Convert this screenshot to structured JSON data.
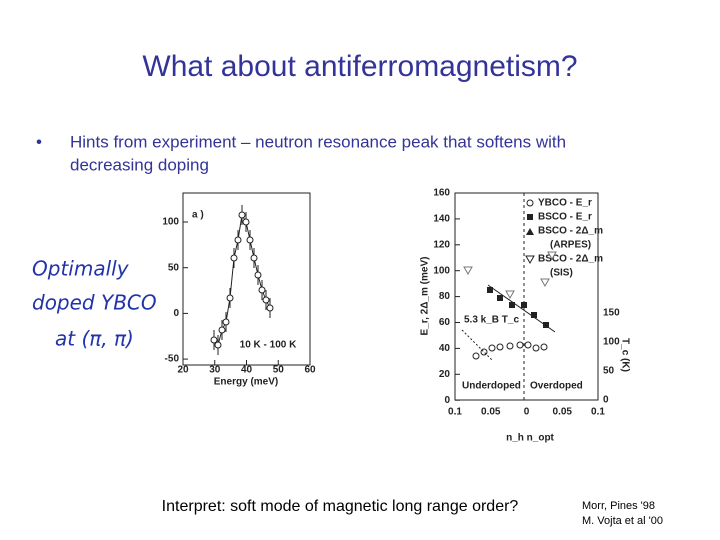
{
  "title": "What about antiferromagnetism?",
  "bullets": [
    "Hints from experiment – neutron resonance peak that softens with",
    "decreasing doping"
  ],
  "handwritten_note": [
    "Optimally",
    "doped YBCO",
    "at (π, π)"
  ],
  "figure_left": {
    "panel_label": "a )",
    "annotation": "10 K - 100 K",
    "xlabel": "Energy (meV)",
    "xticks": [
      "20",
      "30",
      "40",
      "50",
      "60"
    ],
    "yticks": [
      "100",
      "50",
      "0",
      "-50"
    ]
  },
  "figure_right": {
    "ylabel": "E_r, 2Δ_m (meV)",
    "y2label": "T_c (K)",
    "xlabel": "n_h   n_opt",
    "yticks": [
      "160",
      "140",
      "120",
      "100",
      "80",
      "60",
      "40",
      "20",
      "0"
    ],
    "y2ticks": [
      "150",
      "100",
      "50",
      "0"
    ],
    "xticks": [
      "0.1",
      "0.05",
      "0",
      "0.05",
      "0.1"
    ],
    "legend": [
      "YBCO - E_r",
      "BSCO - E_r",
      "BSCO - 2Δ_m",
      "(ARPES)",
      "BSCO - 2Δ_m",
      "(SIS)"
    ],
    "annotation": "5.3 k_B T_c",
    "regions": [
      "Underdoped",
      "Overdoped"
    ]
  },
  "caption": "Interpret: soft mode of magnetic long range order?",
  "references": [
    "Morr, Pines '98",
    "M. Vojta et al '00"
  ]
}
